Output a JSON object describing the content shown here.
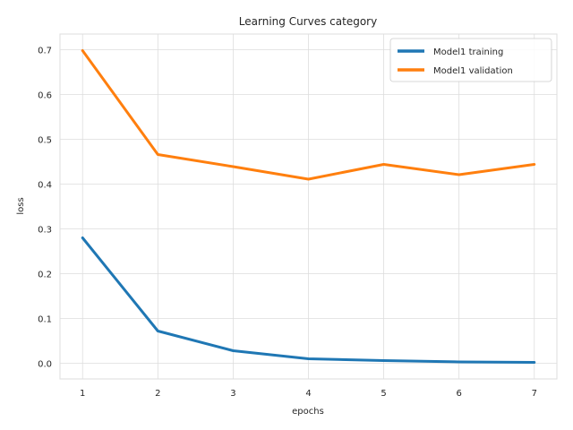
{
  "chart_data": {
    "type": "line",
    "title": "Learning Curves category",
    "xlabel": "epochs",
    "ylabel": "loss",
    "x": [
      1,
      2,
      3,
      4,
      5,
      6,
      7
    ],
    "xlim": [
      0.7,
      7.3
    ],
    "ylim": [
      -0.035,
      0.735
    ],
    "xticks": [
      "1",
      "2",
      "3",
      "4",
      "5",
      "6",
      "7"
    ],
    "yticks": [
      "0.0",
      "0.1",
      "0.2",
      "0.3",
      "0.4",
      "0.5",
      "0.6",
      "0.7"
    ],
    "grid": true,
    "legend_position": "top-right",
    "series": [
      {
        "name": "Model1 training",
        "color": "#1f77b4",
        "values": [
          0.28,
          0.072,
          0.028,
          0.01,
          0.006,
          0.003,
          0.002
        ]
      },
      {
        "name": "Model1 validation",
        "color": "#ff7f0e",
        "values": [
          0.698,
          0.466,
          0.439,
          0.411,
          0.444,
          0.421,
          0.444
        ]
      }
    ]
  }
}
